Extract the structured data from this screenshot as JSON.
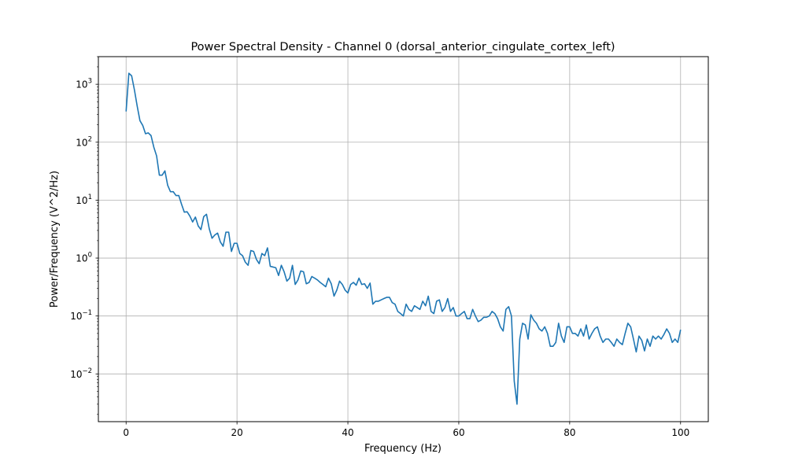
{
  "chart_data": {
    "type": "line",
    "title": "Power Spectral Density - Channel 0 (dorsal_anterior_cingulate_cortex_left)",
    "xlabel": "Frequency (Hz)",
    "ylabel": "Power/Frequency (V^2/Hz)",
    "xlim": [
      -5,
      105
    ],
    "ylim": [
      0.0015,
      3000
    ],
    "yscale": "log",
    "grid": true,
    "x_ticks": [
      0,
      20,
      40,
      60,
      80,
      100
    ],
    "x_tick_labels": [
      "0",
      "20",
      "40",
      "60",
      "80",
      "100"
    ],
    "y_ticks": [
      0.01,
      0.1,
      1,
      10,
      100,
      1000
    ],
    "y_tick_base": "10",
    "y_tick_exponents": [
      "−2",
      "−1",
      "0",
      "1",
      "2",
      "3"
    ],
    "series": [
      {
        "color": "#1f77b4",
        "points": [
          [
            0,
            340
          ],
          [
            0.5,
            1550
          ],
          [
            1,
            1400
          ],
          [
            1.5,
            800
          ],
          [
            2,
            420
          ],
          [
            2.5,
            235
          ],
          [
            3,
            195
          ],
          [
            3.5,
            140
          ],
          [
            4,
            145
          ],
          [
            4.5,
            130
          ],
          [
            5,
            82
          ],
          [
            5.5,
            58
          ],
          [
            6,
            27
          ],
          [
            6.5,
            27
          ],
          [
            7,
            32
          ],
          [
            7.5,
            18
          ],
          [
            8,
            14
          ],
          [
            8.5,
            14
          ],
          [
            9,
            12
          ],
          [
            9.5,
            12
          ],
          [
            10,
            8.5
          ],
          [
            10.5,
            6.2
          ],
          [
            11,
            6.3
          ],
          [
            11.5,
            5.3
          ],
          [
            12,
            4.2
          ],
          [
            12.5,
            5.1
          ],
          [
            13,
            3.6
          ],
          [
            13.5,
            3.1
          ],
          [
            14,
            5.2
          ],
          [
            14.5,
            5.7
          ],
          [
            15,
            3.2
          ],
          [
            15.5,
            2.2
          ],
          [
            16,
            2.5
          ],
          [
            16.5,
            2.7
          ],
          [
            17,
            1.9
          ],
          [
            17.5,
            1.6
          ],
          [
            18,
            2.8
          ],
          [
            18.5,
            2.8
          ],
          [
            19,
            1.3
          ],
          [
            19.5,
            1.8
          ],
          [
            20,
            1.8
          ],
          [
            20.5,
            1.2
          ],
          [
            21,
            1.1
          ],
          [
            21.5,
            0.85
          ],
          [
            22,
            0.75
          ],
          [
            22.5,
            1.35
          ],
          [
            23,
            1.3
          ],
          [
            23.5,
            0.95
          ],
          [
            24,
            0.8
          ],
          [
            24.5,
            1.2
          ],
          [
            25,
            1.1
          ],
          [
            25.5,
            1.5
          ],
          [
            26,
            0.72
          ],
          [
            26.5,
            0.7
          ],
          [
            27,
            0.68
          ],
          [
            27.5,
            0.5
          ],
          [
            28,
            0.75
          ],
          [
            28.5,
            0.58
          ],
          [
            29,
            0.4
          ],
          [
            29.5,
            0.45
          ],
          [
            30,
            0.75
          ],
          [
            30.5,
            0.35
          ],
          [
            31,
            0.42
          ],
          [
            31.5,
            0.6
          ],
          [
            32,
            0.58
          ],
          [
            32.5,
            0.36
          ],
          [
            33,
            0.38
          ],
          [
            33.5,
            0.48
          ],
          [
            34,
            0.45
          ],
          [
            34.5,
            0.42
          ],
          [
            35,
            0.38
          ],
          [
            35.5,
            0.35
          ],
          [
            36,
            0.32
          ],
          [
            36.5,
            0.45
          ],
          [
            37,
            0.36
          ],
          [
            37.5,
            0.22
          ],
          [
            38,
            0.28
          ],
          [
            38.5,
            0.4
          ],
          [
            39,
            0.35
          ],
          [
            39.5,
            0.28
          ],
          [
            40,
            0.25
          ],
          [
            40.5,
            0.35
          ],
          [
            41,
            0.38
          ],
          [
            41.5,
            0.34
          ],
          [
            42,
            0.45
          ],
          [
            42.5,
            0.35
          ],
          [
            43,
            0.36
          ],
          [
            43.5,
            0.3
          ],
          [
            44,
            0.37
          ],
          [
            44.5,
            0.16
          ],
          [
            45,
            0.18
          ],
          [
            45.5,
            0.18
          ],
          [
            46,
            0.19
          ],
          [
            46.5,
            0.2
          ],
          [
            47,
            0.21
          ],
          [
            47.5,
            0.21
          ],
          [
            48,
            0.17
          ],
          [
            48.5,
            0.16
          ],
          [
            49,
            0.12
          ],
          [
            49.5,
            0.11
          ],
          [
            50,
            0.1
          ],
          [
            50.5,
            0.16
          ],
          [
            51,
            0.13
          ],
          [
            51.5,
            0.12
          ],
          [
            52,
            0.15
          ],
          [
            52.5,
            0.14
          ],
          [
            53,
            0.13
          ],
          [
            53.5,
            0.18
          ],
          [
            54,
            0.15
          ],
          [
            54.5,
            0.22
          ],
          [
            55,
            0.12
          ],
          [
            55.5,
            0.11
          ],
          [
            56,
            0.18
          ],
          [
            56.5,
            0.19
          ],
          [
            57,
            0.12
          ],
          [
            57.5,
            0.14
          ],
          [
            58,
            0.2
          ],
          [
            58.5,
            0.12
          ],
          [
            59,
            0.14
          ],
          [
            59.5,
            0.1
          ],
          [
            60,
            0.1
          ],
          [
            60.5,
            0.11
          ],
          [
            61,
            0.12
          ],
          [
            61.5,
            0.09
          ],
          [
            62,
            0.09
          ],
          [
            62.5,
            0.13
          ],
          [
            63,
            0.1
          ],
          [
            63.5,
            0.08
          ],
          [
            64,
            0.085
          ],
          [
            64.5,
            0.095
          ],
          [
            65,
            0.095
          ],
          [
            65.5,
            0.1
          ],
          [
            66,
            0.12
          ],
          [
            66.5,
            0.11
          ],
          [
            67,
            0.09
          ],
          [
            67.5,
            0.065
          ],
          [
            68,
            0.055
          ],
          [
            68.5,
            0.13
          ],
          [
            69,
            0.145
          ],
          [
            69.5,
            0.1
          ],
          [
            70,
            0.0075
          ],
          [
            70.5,
            0.003
          ],
          [
            71,
            0.04
          ],
          [
            71.5,
            0.075
          ],
          [
            72,
            0.07
          ],
          [
            72.5,
            0.04
          ],
          [
            73,
            0.105
          ],
          [
            73.5,
            0.085
          ],
          [
            74,
            0.075
          ],
          [
            74.5,
            0.06
          ],
          [
            75,
            0.055
          ],
          [
            75.5,
            0.065
          ],
          [
            76,
            0.05
          ],
          [
            76.5,
            0.03
          ],
          [
            77,
            0.03
          ],
          [
            77.5,
            0.035
          ],
          [
            78,
            0.075
          ],
          [
            78.5,
            0.045
          ],
          [
            79,
            0.035
          ],
          [
            79.5,
            0.065
          ],
          [
            80,
            0.065
          ],
          [
            80.5,
            0.05
          ],
          [
            81,
            0.05
          ],
          [
            81.5,
            0.045
          ],
          [
            82,
            0.06
          ],
          [
            82.5,
            0.045
          ],
          [
            83,
            0.07
          ],
          [
            83.5,
            0.04
          ],
          [
            84,
            0.05
          ],
          [
            84.5,
            0.06
          ],
          [
            85,
            0.065
          ],
          [
            85.5,
            0.045
          ],
          [
            86,
            0.035
          ],
          [
            86.5,
            0.04
          ],
          [
            87,
            0.04
          ],
          [
            87.5,
            0.035
          ],
          [
            88,
            0.03
          ],
          [
            88.5,
            0.04
          ],
          [
            89,
            0.035
          ],
          [
            89.5,
            0.032
          ],
          [
            90,
            0.05
          ],
          [
            90.5,
            0.075
          ],
          [
            91,
            0.065
          ],
          [
            91.5,
            0.04
          ],
          [
            92,
            0.024
          ],
          [
            92.5,
            0.045
          ],
          [
            93,
            0.038
          ],
          [
            93.5,
            0.025
          ],
          [
            94,
            0.04
          ],
          [
            94.5,
            0.03
          ],
          [
            95,
            0.045
          ],
          [
            95.5,
            0.04
          ],
          [
            96,
            0.045
          ],
          [
            96.5,
            0.04
          ],
          [
            97,
            0.048
          ],
          [
            97.5,
            0.06
          ],
          [
            98,
            0.05
          ],
          [
            98.5,
            0.035
          ],
          [
            99,
            0.04
          ],
          [
            99.5,
            0.035
          ],
          [
            100,
            0.058
          ]
        ]
      }
    ]
  }
}
